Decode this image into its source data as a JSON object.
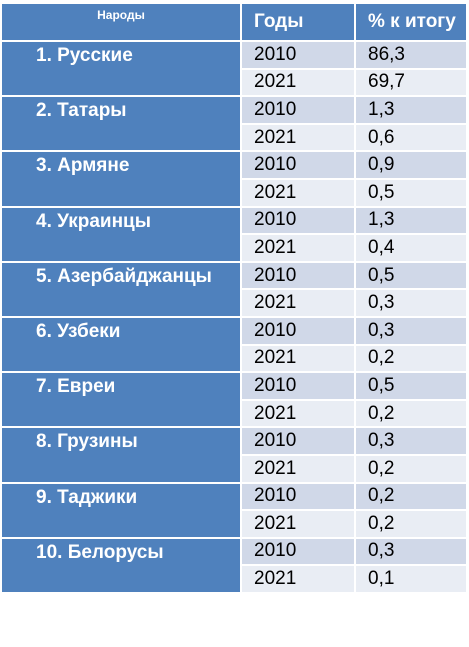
{
  "table": {
    "header": [
      "Народы",
      "Годы",
      "% к итогу"
    ],
    "groups": [
      {
        "name": "1. Русские",
        "rows": [
          [
            "2010",
            "86,3"
          ],
          [
            "2021",
            "69,7"
          ]
        ]
      },
      {
        "name": "2. Татары",
        "rows": [
          [
            "2010",
            "1,3"
          ],
          [
            "2021",
            "0,6"
          ]
        ]
      },
      {
        "name": "3. Армяне",
        "rows": [
          [
            "2010",
            "0,9"
          ],
          [
            "2021",
            "0,5"
          ]
        ]
      },
      {
        "name": "4. Украинцы",
        "rows": [
          [
            "2010",
            "1,3"
          ],
          [
            "2021",
            "0,4"
          ]
        ]
      },
      {
        "name": "5. Азербайджанцы",
        "rows": [
          [
            "2010",
            "0,5"
          ],
          [
            "2021",
            "0,3"
          ]
        ]
      },
      {
        "name": "6. Узбеки",
        "rows": [
          [
            "2010",
            "0,3"
          ],
          [
            "2021",
            "0,2"
          ]
        ]
      },
      {
        "name": "7. Евреи",
        "rows": [
          [
            "2010",
            "0,5"
          ],
          [
            "2021",
            "0,2"
          ]
        ]
      },
      {
        "name": "8. Грузины",
        "rows": [
          [
            "2010",
            "0,3"
          ],
          [
            "2021",
            "0,2"
          ]
        ]
      },
      {
        "name": "9. Таджики",
        "rows": [
          [
            "2010",
            "0,2"
          ],
          [
            "2021",
            "0,2"
          ]
        ]
      },
      {
        "name": "10. Белорусы",
        "rows": [
          [
            "2010",
            "0,3"
          ],
          [
            "2021",
            "0,1"
          ]
        ]
      }
    ]
  }
}
